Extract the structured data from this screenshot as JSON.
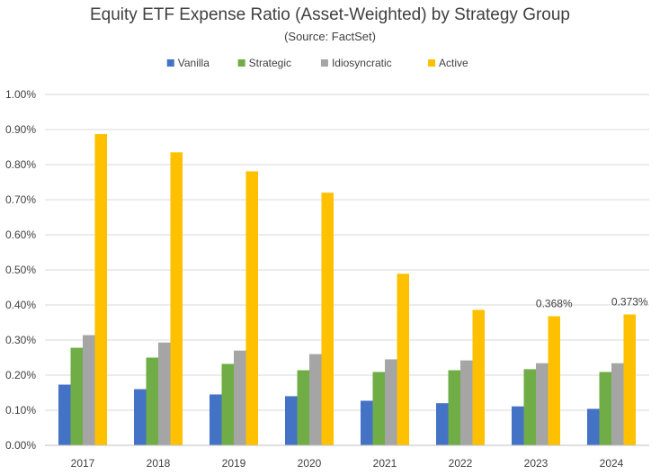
{
  "chart_data": {
    "type": "bar",
    "title": "Equity ETF Expense Ratio (Asset-Weighted) by Strategy Group",
    "subtitle": "(Source: FactSet)",
    "categories": [
      "2017",
      "2018",
      "2019",
      "2020",
      "2021",
      "2022",
      "2023",
      "2024"
    ],
    "series": [
      {
        "name": "Vanilla",
        "color": "#4472C4",
        "values": [
          0.173,
          0.16,
          0.145,
          0.14,
          0.127,
          0.12,
          0.111,
          0.104
        ]
      },
      {
        "name": "Strategic",
        "color": "#70AD47",
        "values": [
          0.278,
          0.25,
          0.232,
          0.214,
          0.209,
          0.214,
          0.217,
          0.209
        ]
      },
      {
        "name": "Idiosyncratic",
        "color": "#A5A5A5",
        "values": [
          0.314,
          0.293,
          0.27,
          0.26,
          0.245,
          0.242,
          0.234,
          0.234
        ]
      },
      {
        "name": "Active",
        "color": "#FFC000",
        "values": [
          0.887,
          0.835,
          0.781,
          0.72,
          0.489,
          0.386,
          0.368,
          0.373
        ]
      }
    ],
    "data_labels": [
      {
        "series": "Active",
        "category": "2023",
        "text": "0.368%"
      },
      {
        "series": "Active",
        "category": "2024",
        "text": "0.373%"
      }
    ],
    "yticks": [
      "0.00%",
      "0.10%",
      "0.20%",
      "0.30%",
      "0.40%",
      "0.50%",
      "0.60%",
      "0.70%",
      "0.80%",
      "0.90%",
      "1.00%"
    ],
    "ylim": [
      0,
      1.0
    ],
    "xlabel": "",
    "ylabel": "",
    "grid": "horizontal",
    "legend_position": "top"
  }
}
